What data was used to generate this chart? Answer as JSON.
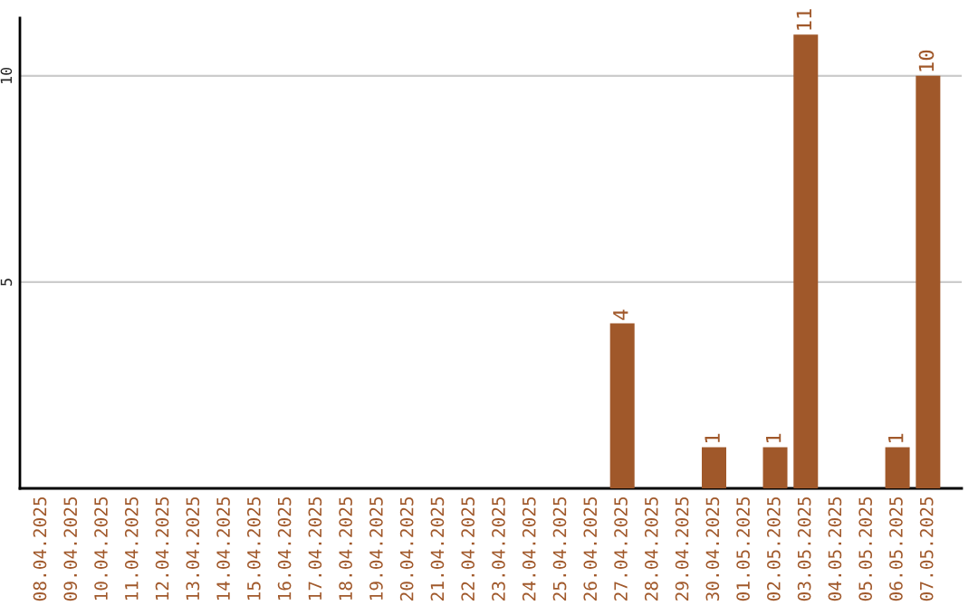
{
  "chart_data": {
    "type": "bar",
    "categories": [
      "08.04.2025",
      "09.04.2025",
      "10.04.2025",
      "11.04.2025",
      "12.04.2025",
      "13.04.2025",
      "14.04.2025",
      "15.04.2025",
      "16.04.2025",
      "17.04.2025",
      "18.04.2025",
      "19.04.2025",
      "20.04.2025",
      "21.04.2025",
      "22.04.2025",
      "23.04.2025",
      "24.04.2025",
      "25.04.2025",
      "26.04.2025",
      "27.04.2025",
      "28.04.2025",
      "29.04.2025",
      "30.04.2025",
      "01.05.2025",
      "02.05.2025",
      "03.05.2025",
      "04.05.2025",
      "05.05.2025",
      "06.05.2025",
      "07.05.2025"
    ],
    "values": [
      0,
      0,
      0,
      0,
      0,
      0,
      0,
      0,
      0,
      0,
      0,
      0,
      0,
      0,
      0,
      0,
      0,
      0,
      0,
      4,
      0,
      0,
      1,
      0,
      1,
      11,
      0,
      0,
      1,
      10
    ],
    "value_labels": [
      null,
      null,
      null,
      null,
      null,
      null,
      null,
      null,
      null,
      null,
      null,
      null,
      null,
      null,
      null,
      null,
      null,
      null,
      null,
      "4",
      null,
      null,
      "1",
      null,
      "1",
      "11",
      null,
      null,
      "1",
      "10"
    ],
    "color": "#a0582a",
    "ylim": [
      0,
      11.4
    ],
    "yticks": [
      5,
      10
    ],
    "grid": "y",
    "legend": false
  }
}
